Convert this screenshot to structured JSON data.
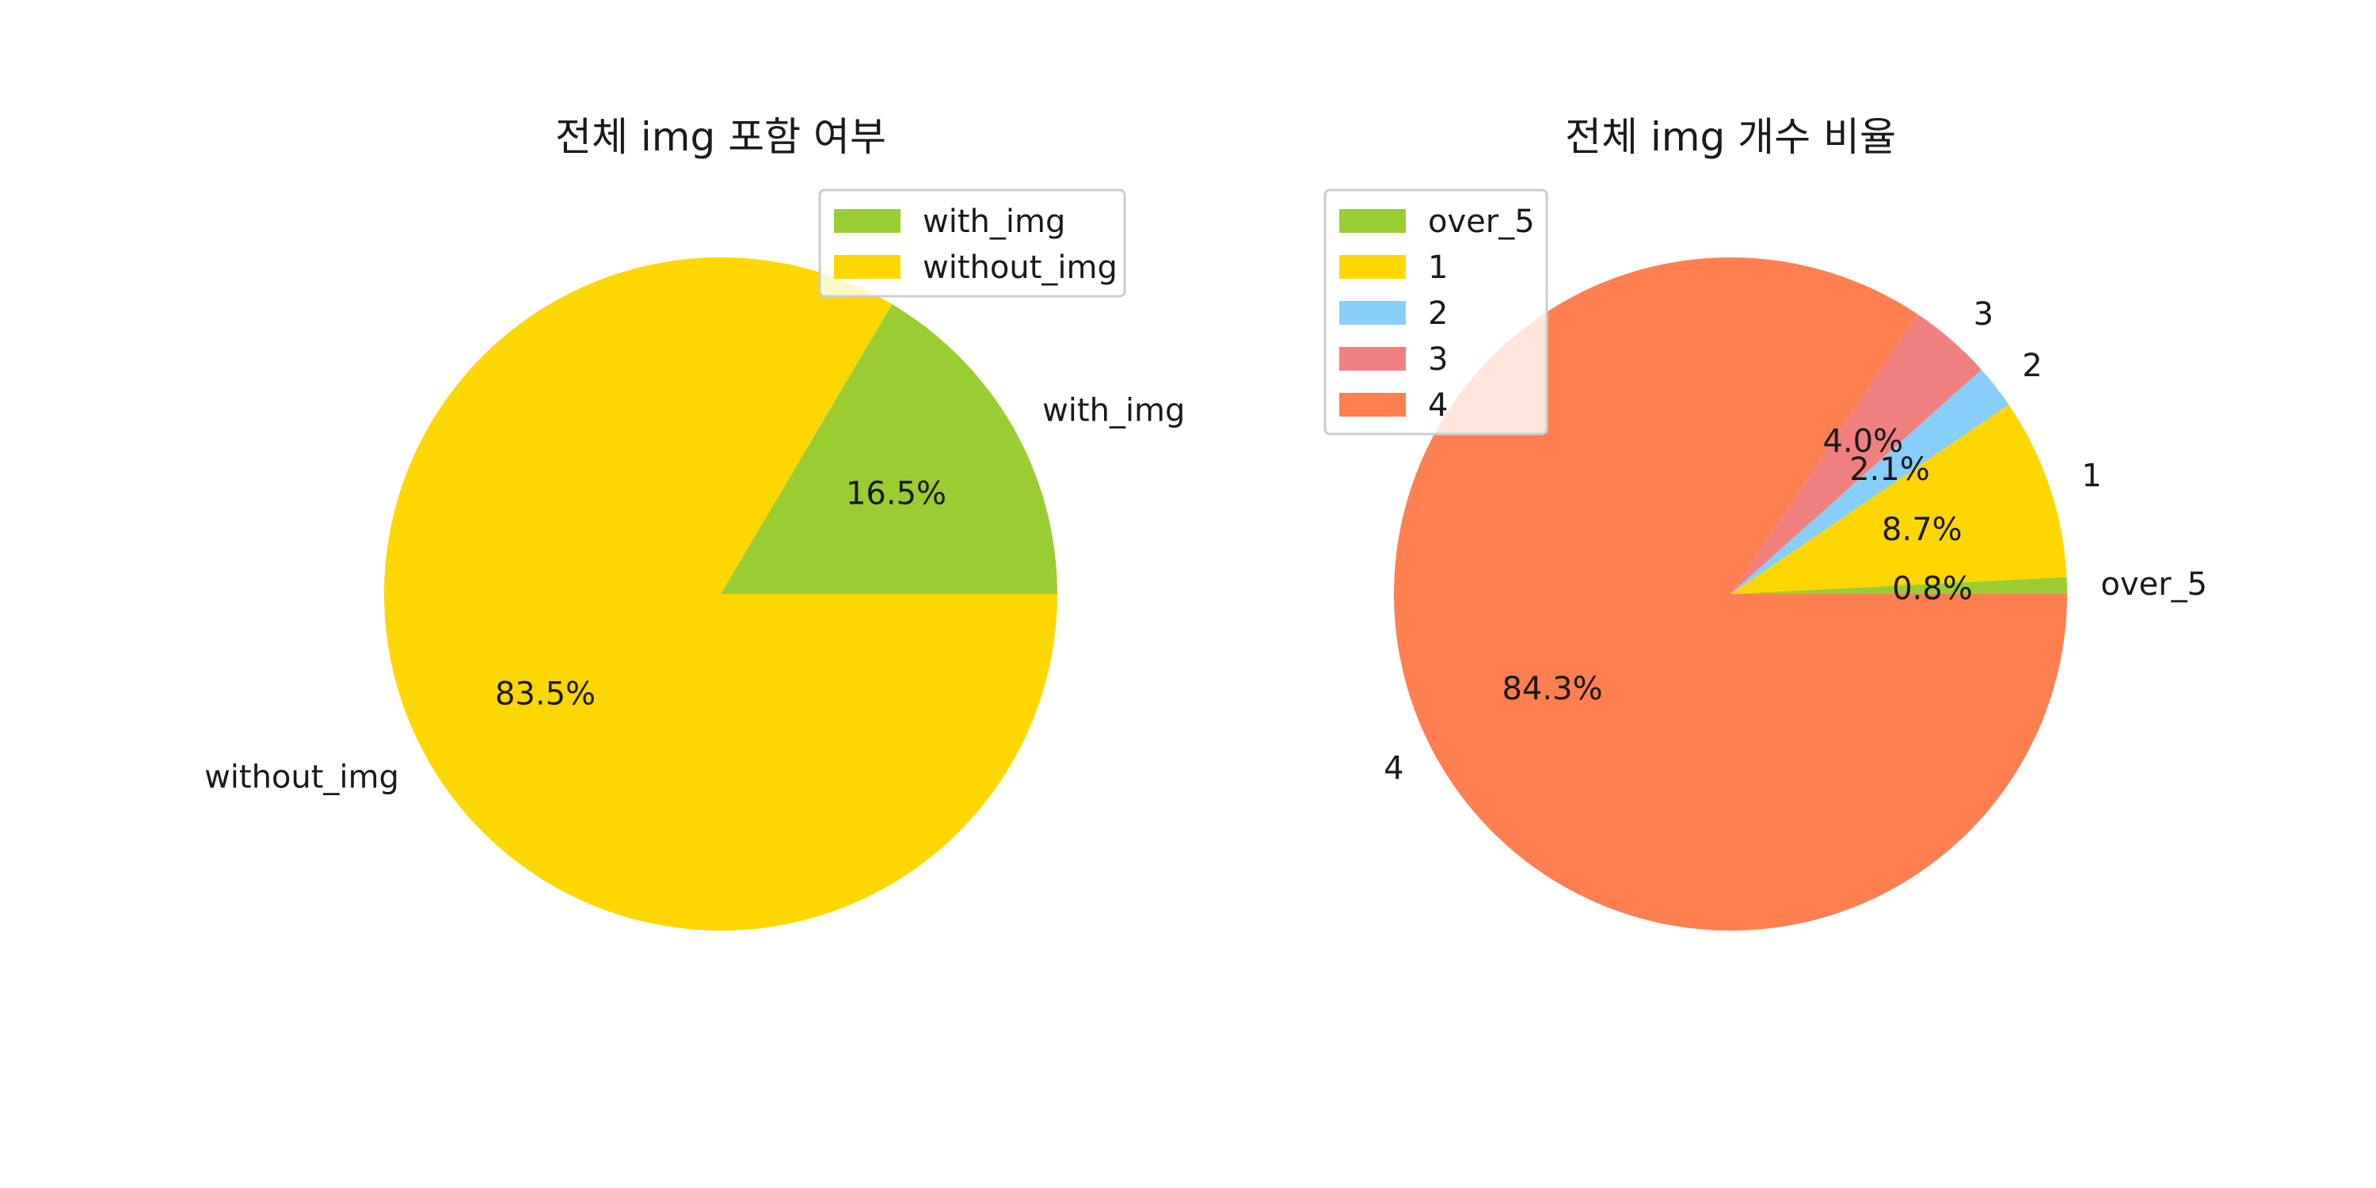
{
  "chart_data": [
    {
      "type": "pie",
      "title": "전체 img 포함 여부",
      "labels": [
        "with_img",
        "without_img"
      ],
      "values": [
        16.5,
        83.5
      ],
      "pct_labels": [
        "16.5%",
        "83.5%"
      ],
      "colors": [
        "#9ACD32",
        "#FFD700"
      ],
      "legend": [
        "with_img",
        "without_img"
      ],
      "legend_placement": "upper-right"
    },
    {
      "type": "pie",
      "title": "전체 img 개수 비율",
      "labels": [
        "over_5",
        "1",
        "2",
        "3",
        "4"
      ],
      "values": [
        0.8,
        8.7,
        2.1,
        4.0,
        84.3
      ],
      "pct_labels": [
        "0.8%",
        "8.7%",
        "2.1%",
        "4.0%",
        "84.3%"
      ],
      "colors": [
        "#9ACD32",
        "#FFD700",
        "#87CEFA",
        "#F08080",
        "#FF7F50"
      ],
      "legend": [
        "over_5",
        "1",
        "2",
        "3",
        "4"
      ],
      "legend_placement": "upper-left"
    }
  ]
}
